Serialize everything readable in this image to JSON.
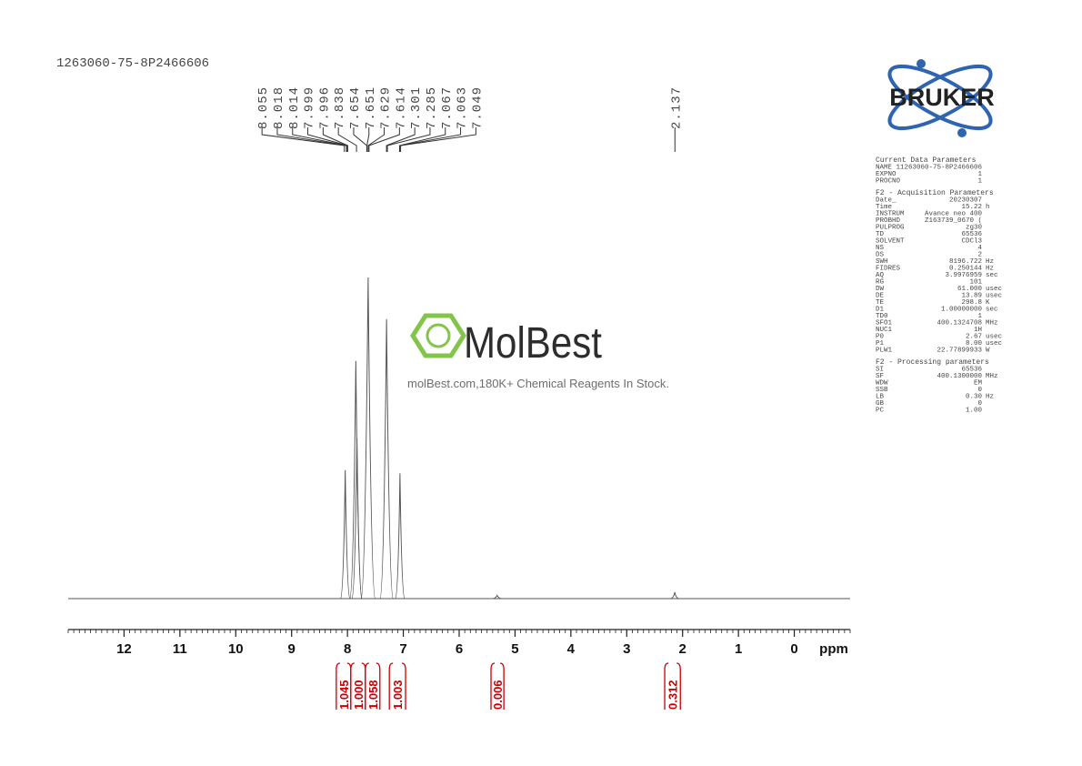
{
  "chart_data": {
    "type": "nmr",
    "title": "1263060-75-8P2466606",
    "xlabel": "ppm",
    "xlim": [
      13,
      -1
    ],
    "xticks": [
      12,
      11,
      10,
      9,
      8,
      7,
      6,
      5,
      4,
      3,
      2,
      1,
      0
    ],
    "minor_tick_step": 0.1,
    "ylim": [
      0,
      100
    ],
    "color": "#555555",
    "peaks": {
      "x": [
        8.04,
        7.85,
        7.83,
        7.63,
        7.3,
        7.06,
        5.32,
        2.14
      ],
      "y": [
        40,
        74,
        50,
        100,
        87,
        39,
        1,
        2
      ]
    },
    "peak_labels": [
      8.055,
      8.018,
      8.014,
      7.999,
      7.996,
      7.838,
      7.654,
      7.651,
      7.629,
      7.614,
      7.301,
      7.285,
      7.067,
      7.063,
      7.049,
      2.137
    ],
    "integral_color": "#cc0000",
    "integrals": [
      {
        "value": 1.045,
        "x": [
          8.2,
          7.94
        ]
      },
      {
        "value": {
          "value": 1,
          "label": "1.000"
        },
        "x": [
          7.94,
          7.68
        ]
      },
      {
        "value": 1.058,
        "x": [
          7.68,
          7.42
        ]
      },
      {
        "value": 1.003,
        "x": [
          7.25,
          6.96
        ]
      },
      {
        "value": 0.006,
        "x": [
          5.43,
          5.2
        ]
      },
      {
        "value": 0.312,
        "x": [
          2.32,
          2.04
        ]
      }
    ]
  },
  "logo": {
    "text": "BRUKER"
  },
  "watermark": {
    "brand": "MolBest",
    "tagline": "molBest.com,180K+ Chemical Reagents In Stock."
  },
  "parameters": [
    {
      "title": "Current Data Parameters",
      "rows": [
        [
          "NAME",
          "11263060-75-8P2466606",
          ""
        ],
        [
          "EXPNO",
          "1",
          ""
        ],
        [
          "PROCNO",
          "1",
          ""
        ]
      ]
    },
    {
      "title": "F2 - Acquisition Parameters",
      "rows": [
        [
          "Date_",
          "20230307",
          ""
        ],
        [
          "Time",
          "15.22",
          "h"
        ],
        [
          "INSTRUM",
          "Avance neo 400",
          ""
        ],
        [
          "PROBHD",
          "Z163739_0670 (",
          ""
        ],
        [
          "PULPROG",
          "zg30",
          ""
        ],
        [
          "TD",
          "65536",
          ""
        ],
        [
          "SOLVENT",
          "CDCl3",
          ""
        ],
        [
          "NS",
          "4",
          ""
        ],
        [
          "DS",
          "2",
          ""
        ],
        [
          "SWH",
          "8196.722",
          "Hz"
        ],
        [
          "FIDRES",
          "0.250144",
          "Hz"
        ],
        [
          "AQ",
          "3.9976959",
          "sec"
        ],
        [
          "RG",
          "101",
          ""
        ],
        [
          "DW",
          "61.000",
          "usec"
        ],
        [
          "DE",
          "13.89",
          "usec"
        ],
        [
          "TE",
          "298.8",
          "K"
        ],
        [
          "D1",
          "1.00000000",
          "sec"
        ],
        [
          "TD0",
          "1",
          ""
        ],
        [
          "SFO1",
          "400.1324708",
          "MHz"
        ],
        [
          "NUC1",
          "1H",
          ""
        ],
        [
          "P0",
          "2.67",
          "usec"
        ],
        [
          "P1",
          "8.00",
          "usec"
        ],
        [
          "PLW1",
          "22.77899933",
          "W"
        ]
      ]
    },
    {
      "title": "F2 - Processing parameters",
      "rows": [
        [
          "SI",
          "65536",
          ""
        ],
        [
          "SF",
          "400.1300000",
          "MHz"
        ],
        [
          "WDW",
          "EM",
          ""
        ],
        [
          "SSB",
          "0",
          ""
        ],
        [
          "LB",
          "0.30",
          "Hz"
        ],
        [
          "GB",
          "0",
          ""
        ],
        [
          "PC",
          "1.00",
          ""
        ]
      ]
    }
  ]
}
